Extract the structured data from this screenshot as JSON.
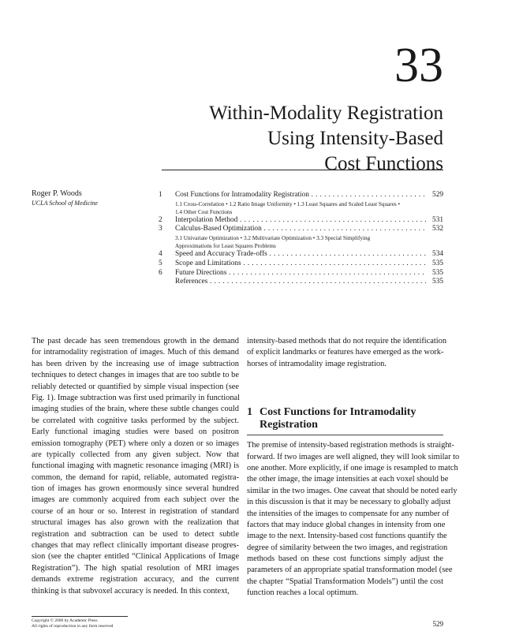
{
  "chapter": {
    "number": "33",
    "title_lines": [
      "Within-Modality Registration",
      "Using Intensity-Based",
      "Cost Functions"
    ]
  },
  "author": {
    "name": "Roger P. Woods",
    "affiliation": "UCLA School of Medicine"
  },
  "toc": [
    {
      "num": "1",
      "label": "Cost Functions for Intramodality Registration",
      "page": "529",
      "sub": [
        "1.1 Cross-Correlation • 1.2 Ratio Image Uniformity • 1.3 Least Squares and Scaled Least Squares •",
        "1.4 Other Cost Functions"
      ]
    },
    {
      "num": "2",
      "label": "Interpolation Method",
      "page": "531",
      "sub": []
    },
    {
      "num": "3",
      "label": "Calculus-Based Optimization",
      "page": "532",
      "sub": [
        "3.1 Univariate Optimization • 3.2 Multivariate Optimization • 3.3 Special Simplifying",
        "Approximations for Least Squares Problems"
      ]
    },
    {
      "num": "4",
      "label": "Speed and Accuracy Trade-offs",
      "page": "534",
      "sub": []
    },
    {
      "num": "5",
      "label": "Scope and Limitations",
      "page": "535",
      "sub": []
    },
    {
      "num": "6",
      "label": "Future Directions",
      "page": "535",
      "sub": []
    },
    {
      "num": "",
      "label": "References",
      "page": "535",
      "sub": []
    }
  ],
  "col1": [
    "The past decade has seen tremendous growth in the demand",
    "for intramodality registration of images. Much of this demand",
    "has been driven by the increasing use of image subtraction",
    "techniques to detect changes in images that are too subtle to be",
    "reliably detected or quantified by simple visual inspection (see",
    "Fig. 1). Image subtraction was first used primarily in functional",
    "imaging studies of the brain, where these subtle changes could",
    "be correlated with cognitive tasks performed by the subject.",
    "Early functional imaging studies were based on positron",
    "emission tomography (PET) where only a dozen or so images",
    "are typically collected from any given subject. Now that",
    "functional imaging with magnetic resonance imaging (MRI) is",
    "common, the demand for rapid, reliable, automated registra-",
    "tion of images has grown enormously since several hundred",
    "images are commonly acquired from each subject over the",
    "course of an hour or so. Interest in registration of standard",
    "structural images has also grown with the realization that",
    "registration and subtraction can be used to detect subtle",
    "changes that may reflect clinically important disease progres-",
    "sion (see the chapter entitled “Clinical Applications of Image",
    "Registration”). The high spatial resolution of MRI images",
    "demands extreme registration accuracy, and the current",
    "thinking is that subvoxel accuracy is needed. In this context,"
  ],
  "col2_intro": [
    "intensity-based methods that do not require the identification",
    "of explicit landmarks or features have emerged as the work-",
    "horses of intramodality image registration."
  ],
  "section1": {
    "num": "1",
    "title_lines": [
      "Cost Functions for Intramodality",
      "Registration"
    ]
  },
  "col2_body": [
    "The premise of intensity-based registration methods is straight-",
    "forward. If two images are well aligned, they will look similar to",
    "one another. More explicitly, if one image is resampled to match",
    "the other image, the image intensities at each voxel should be",
    "similar in the two images. One caveat that should be noted early",
    "in this discussion is that it may be necessary to globally adjust",
    "the intensities of the images to compensate for any number of",
    "factors that may induce global changes in intensity from one",
    "image to the next. Intensity-based cost functions quantify the",
    "degree of similarity between the two images, and registration",
    "methods based on these cost functions simply adjust the",
    "parameters of an appropriate spatial transformation model (see",
    "the chapter “Spatial Transformation Models”) until the cost",
    "function reaches a local optimum."
  ],
  "footer": {
    "copyright": [
      "Copyright © 2000 by Academic Press",
      "All rights of reproduction in any form reserved"
    ],
    "page_number": "529"
  }
}
